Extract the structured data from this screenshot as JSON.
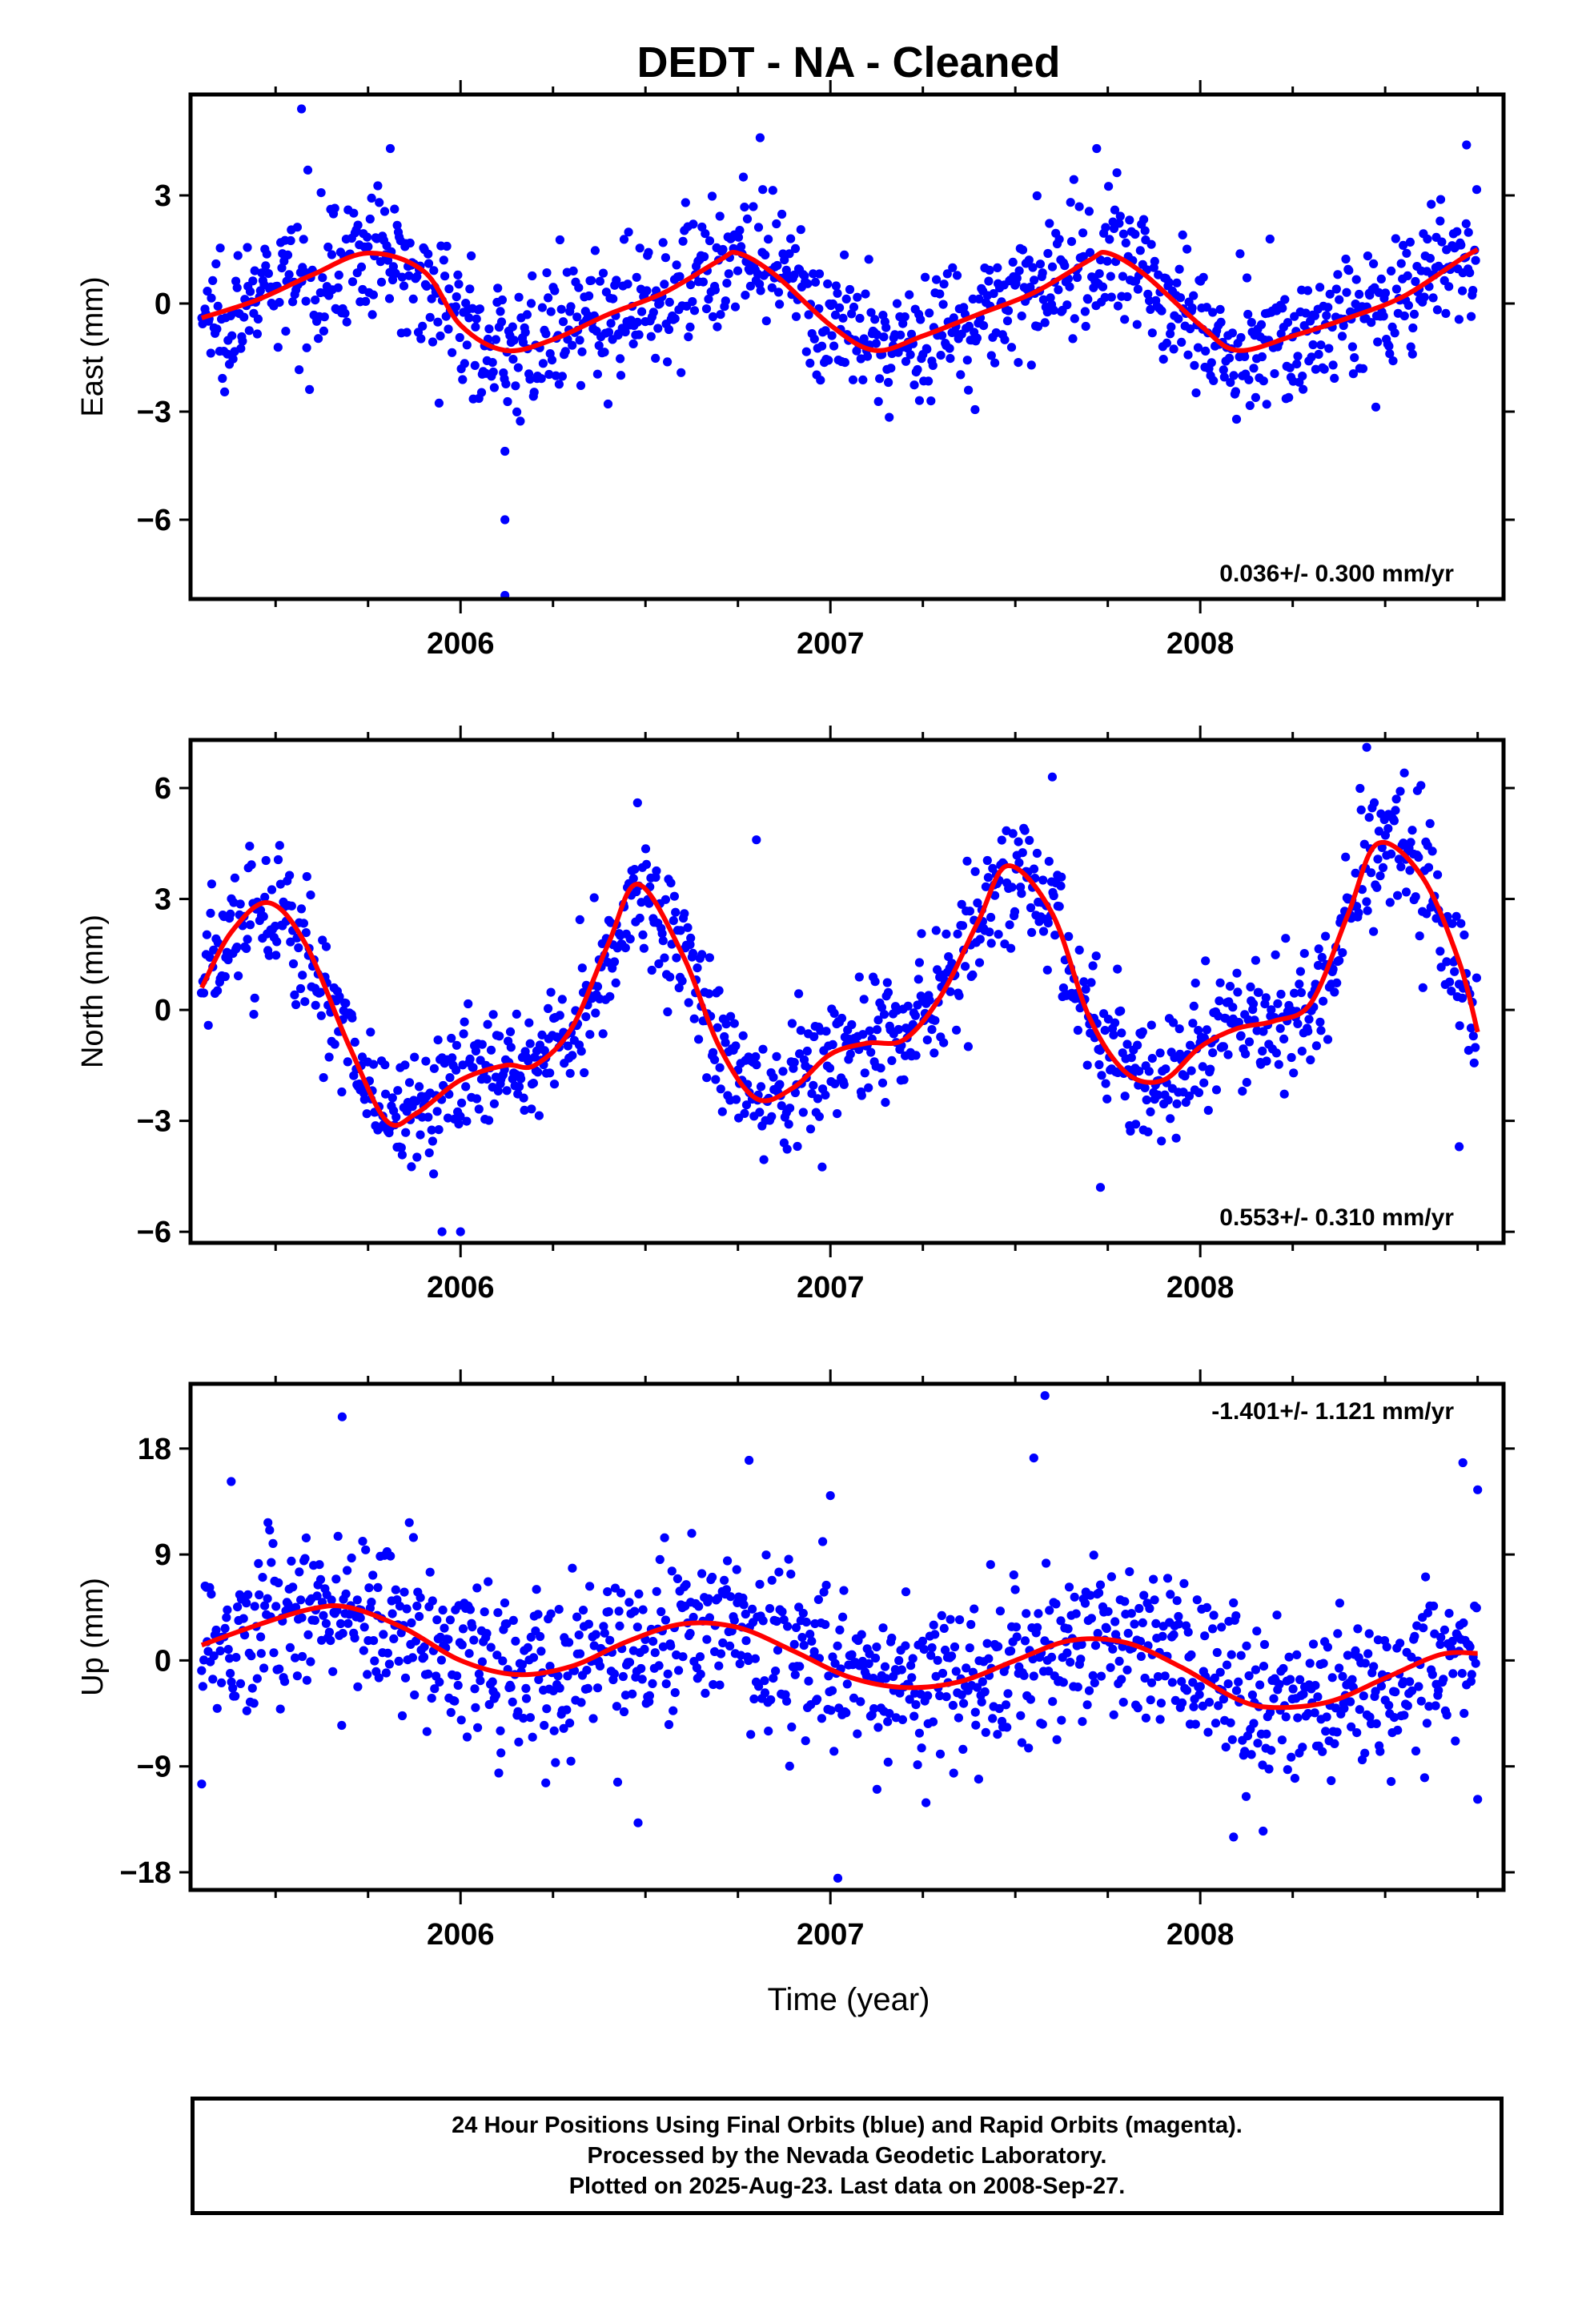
{
  "title": "DEDT  - NA - Cleaned",
  "colors": {
    "points": "#0000ff",
    "fit": "#ff0000",
    "frame": "#000000"
  },
  "xlabel": "Time (year)",
  "footer": {
    "line1": "24 Hour Positions Using Final Orbits (blue) and Rapid Orbits (magenta).",
    "line2": "Processed by the Nevada Geodetic Laboratory.",
    "line3": "Plotted on 2025-Aug-23. Last data on 2008-Sep-27."
  },
  "chart_data": [
    {
      "type": "scatter",
      "ylabel": "East (mm)",
      "xlim": [
        2005.27,
        2008.82
      ],
      "ylim": [
        -8.2,
        5.8
      ],
      "xticks": [
        2006,
        2007,
        2008
      ],
      "xtick_labels": [
        "2006",
        "2007",
        "2008"
      ],
      "yticks": [
        3,
        0,
        -3,
        -6
      ],
      "ytick_labels": [
        "3",
        "0",
        "−3",
        "−6"
      ],
      "rate_label": "0.036+/- 0.300 mm/yr",
      "rate_position": "bottom-right",
      "series": [
        {
          "kind": "points",
          "seasonal": {
            "mean": 0.0,
            "trend": 0.036,
            "amp": 1.4,
            "phase_year": 2005.75,
            "amp2": 0.2,
            "noise": 0.9
          },
          "outliers": [
            [
              2005.57,
              5.4
            ],
            [
              2006.12,
              -4.1
            ],
            [
              2006.12,
              -6.0
            ],
            [
              2006.12,
              -8.1
            ],
            [
              2005.81,
              4.3
            ],
            [
              2006.81,
              4.6
            ],
            [
              2007.72,
              4.3
            ],
            [
              2008.72,
              4.4
            ]
          ]
        },
        {
          "kind": "fit",
          "x": [
            2005.3,
            2005.45,
            2005.6,
            2005.75,
            2005.9,
            2006.0,
            2006.12,
            2006.25,
            2006.4,
            2006.55,
            2006.7,
            2006.75,
            2006.85,
            2007.0,
            2007.12,
            2007.25,
            2007.4,
            2007.55,
            2007.7,
            2007.75,
            2007.85,
            2008.0,
            2008.1,
            2008.25,
            2008.4,
            2008.55,
            2008.7,
            2008.75
          ],
          "y": [
            -0.4,
            0.1,
            0.8,
            1.4,
            0.9,
            -0.6,
            -1.3,
            -1.0,
            -0.3,
            0.3,
            1.2,
            1.4,
            0.8,
            -0.6,
            -1.3,
            -0.9,
            -0.3,
            0.3,
            1.2,
            1.4,
            0.8,
            -0.6,
            -1.3,
            -0.9,
            -0.4,
            0.2,
            1.2,
            1.5
          ]
        }
      ]
    },
    {
      "type": "scatter",
      "ylabel": "North (mm)",
      "xlim": [
        2005.27,
        2008.82
      ],
      "ylim": [
        -6.3,
        7.3
      ],
      "xticks": [
        2006,
        2007,
        2008
      ],
      "xtick_labels": [
        "2006",
        "2007",
        "2008"
      ],
      "yticks": [
        6,
        3,
        0,
        -3,
        -6
      ],
      "ytick_labels": [
        "6",
        "3",
        "0",
        "−3",
        "−6"
      ],
      "rate_label": "0.553+/- 0.310 mm/yr",
      "rate_position": "bottom-right",
      "series": [
        {
          "kind": "points",
          "noise": 0.9,
          "outliers": [
            [
              2005.95,
              -6.0
            ],
            [
              2006.0,
              -6.0
            ],
            [
              2007.6,
              6.3
            ],
            [
              2008.45,
              7.1
            ],
            [
              2007.73,
              -4.8
            ],
            [
              2008.7,
              -3.7
            ],
            [
              2006.8,
              4.6
            ]
          ]
        },
        {
          "kind": "fit",
          "x": [
            2005.3,
            2005.38,
            2005.48,
            2005.58,
            2005.7,
            2005.8,
            2005.88,
            2006.0,
            2006.12,
            2006.2,
            2006.3,
            2006.4,
            2006.48,
            2006.6,
            2006.7,
            2006.8,
            2006.9,
            2007.0,
            2007.1,
            2007.2,
            2007.3,
            2007.4,
            2007.48,
            2007.6,
            2007.7,
            2007.8,
            2007.9,
            2008.0,
            2008.1,
            2008.2,
            2008.3,
            2008.4,
            2008.48,
            2008.6,
            2008.7,
            2008.75
          ],
          "y": [
            0.6,
            2.1,
            2.9,
            1.8,
            -1.0,
            -3.0,
            -2.8,
            -1.9,
            -1.5,
            -1.5,
            -0.5,
            1.8,
            3.4,
            1.5,
            -1.0,
            -2.4,
            -2.1,
            -1.2,
            -0.9,
            -0.8,
            0.4,
            2.4,
            3.9,
            2.6,
            -0.2,
            -1.7,
            -1.9,
            -1.0,
            -0.5,
            -0.3,
            0.2,
            2.6,
            4.5,
            3.6,
            1.3,
            -0.6
          ]
        }
      ]
    },
    {
      "type": "scatter",
      "ylabel": "Up (mm)",
      "xlim": [
        2005.27,
        2008.82
      ],
      "ylim": [
        -19.5,
        23.5
      ],
      "xticks": [
        2006,
        2007,
        2008
      ],
      "xtick_labels": [
        "2006",
        "2007",
        "2008"
      ],
      "yticks": [
        18,
        9,
        0,
        -9,
        -18
      ],
      "ytick_labels": [
        "18",
        "9",
        "0",
        "−9",
        "−18"
      ],
      "rate_label": "-1.401+/- 1.121 mm/yr",
      "rate_position": "top-right",
      "series": [
        {
          "kind": "points",
          "seasonal": {
            "mean": 1.5,
            "trend": -1.401,
            "amp": 2.5,
            "phase_year": 2005.66,
            "amp2": 0.0,
            "noise": 3.5
          },
          "outliers": [
            [
              2005.68,
              20.7
            ],
            [
              2007.58,
              22.5
            ],
            [
              2007.55,
              17.2
            ],
            [
              2006.78,
              17.0
            ],
            [
              2005.38,
              15.2
            ],
            [
              2007.02,
              -18.5
            ],
            [
              2007.0,
              14.0
            ],
            [
              2008.09,
              -15.0
            ],
            [
              2008.17,
              -14.5
            ],
            [
              2008.71,
              16.8
            ],
            [
              2008.75,
              14.5
            ],
            [
              2005.3,
              -10.5
            ],
            [
              2006.48,
              -13.8
            ],
            [
              2008.75,
              -11.8
            ]
          ]
        },
        {
          "kind": "fit",
          "x": [
            2005.3,
            2005.45,
            2005.6,
            2005.7,
            2005.85,
            2006.0,
            2006.15,
            2006.3,
            2006.45,
            2006.6,
            2006.75,
            2006.9,
            2007.05,
            2007.2,
            2007.35,
            2007.5,
            2007.65,
            2007.8,
            2007.95,
            2008.1,
            2008.2,
            2008.35,
            2008.5,
            2008.65,
            2008.75
          ],
          "y": [
            1.3,
            3.0,
            4.4,
            4.5,
            2.7,
            0.0,
            -1.2,
            -0.5,
            1.6,
            3.1,
            2.8,
            0.8,
            -1.4,
            -2.3,
            -1.8,
            0.0,
            1.7,
            1.5,
            -0.6,
            -3.3,
            -4.0,
            -3.5,
            -1.5,
            0.5,
            0.6
          ]
        }
      ]
    }
  ]
}
